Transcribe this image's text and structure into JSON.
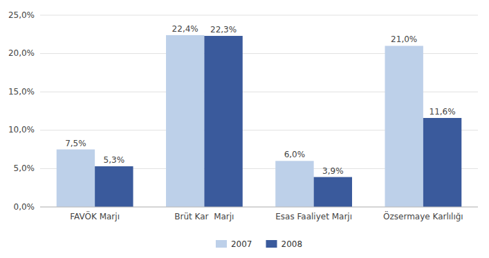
{
  "chart_data": {
    "type": "bar",
    "categories": [
      "FAVÖK Marjı",
      "Brüt Kar  Marjı",
      "Esas Faaliyet Marjı",
      "Özsermaye Karlılığı"
    ],
    "series": [
      {
        "name": "2007",
        "color": "#bdd0e9",
        "values": [
          7.5,
          22.4,
          6.0,
          21.0
        ],
        "value_labels": [
          "7,5%",
          "22,4%",
          "6,0%",
          "21,0%"
        ]
      },
      {
        "name": "2008",
        "color": "#3a5a9c",
        "values": [
          5.3,
          22.3,
          3.9,
          11.6
        ],
        "value_labels": [
          "5,3%",
          "22,3%",
          "3,9%",
          "11,6%"
        ]
      }
    ],
    "ylim": [
      0,
      25
    ],
    "yticks": [
      {
        "value": 0,
        "label": "0,0%"
      },
      {
        "value": 5,
        "label": "5,0%"
      },
      {
        "value": 10,
        "label": "10,0%"
      },
      {
        "value": 15,
        "label": "15,0%"
      },
      {
        "value": 20,
        "label": "20,0%"
      },
      {
        "value": 25,
        "label": "25,0%"
      }
    ],
    "grid": true,
    "data_labels": true,
    "legend": "bottom"
  }
}
